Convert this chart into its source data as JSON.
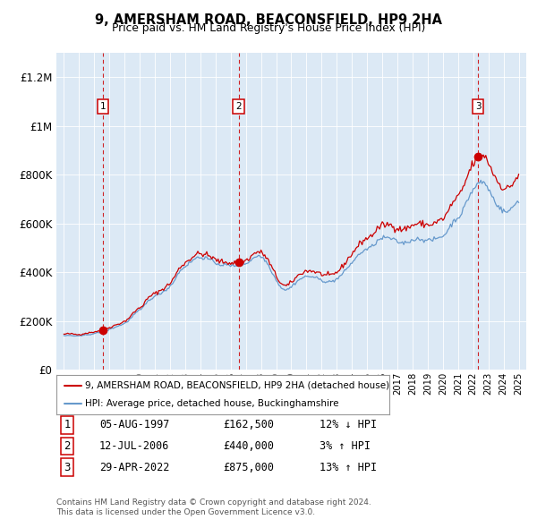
{
  "title": "9, AMERSHAM ROAD, BEACONSFIELD, HP9 2HA",
  "subtitle": "Price paid vs. HM Land Registry's House Price Index (HPI)",
  "sales": [
    {
      "date": 1997.58,
      "price": 162500,
      "label": "1",
      "date_str": "05-AUG-1997",
      "pct": "12%",
      "dir": "↓"
    },
    {
      "date": 2006.52,
      "price": 440000,
      "label": "2",
      "date_str": "12-JUL-2006",
      "pct": "3%",
      "dir": "↑"
    },
    {
      "date": 2022.32,
      "price": 875000,
      "label": "3",
      "date_str": "29-APR-2022",
      "pct": "13%",
      "dir": "↑"
    }
  ],
  "legend_line1": "9, AMERSHAM ROAD, BEACONSFIELD, HP9 2HA (detached house)",
  "legend_line2": "HPI: Average price, detached house, Buckinghamshire",
  "footer1": "Contains HM Land Registry data © Crown copyright and database right 2024.",
  "footer2": "This data is licensed under the Open Government Licence v3.0.",
  "red_color": "#cc0000",
  "blue_color": "#6699cc",
  "bg_color": "#dce9f5",
  "ylim": [
    0,
    1300000
  ],
  "xlim": [
    1994.5,
    2025.5
  ],
  "hpi_years": [
    1995.0,
    1995.08,
    1995.17,
    1995.25,
    1995.33,
    1995.42,
    1995.5,
    1995.58,
    1995.67,
    1995.75,
    1995.83,
    1995.92,
    1996.0,
    1996.08,
    1996.17,
    1996.25,
    1996.33,
    1996.42,
    1996.5,
    1996.58,
    1996.67,
    1996.75,
    1996.83,
    1996.92,
    1997.0,
    1997.08,
    1997.17,
    1997.25,
    1997.33,
    1997.42,
    1997.5,
    1997.58,
    1997.67,
    1997.75,
    1997.83,
    1997.92,
    1998.0,
    1998.08,
    1998.17,
    1998.25,
    1998.33,
    1998.42,
    1998.5,
    1998.58,
    1998.67,
    1998.75,
    1998.83,
    1998.92,
    1999.0,
    1999.08,
    1999.17,
    1999.25,
    1999.33,
    1999.42,
    1999.5,
    1999.58,
    1999.67,
    1999.75,
    1999.83,
    1999.92,
    2000.0,
    2000.08,
    2000.17,
    2000.25,
    2000.33,
    2000.42,
    2000.5,
    2000.58,
    2000.67,
    2000.75,
    2000.83,
    2000.92,
    2001.0,
    2001.08,
    2001.17,
    2001.25,
    2001.33,
    2001.42,
    2001.5,
    2001.58,
    2001.67,
    2001.75,
    2001.83,
    2001.92,
    2002.0,
    2002.08,
    2002.17,
    2002.25,
    2002.33,
    2002.42,
    2002.5,
    2002.58,
    2002.67,
    2002.75,
    2002.83,
    2002.92,
    2003.0,
    2003.08,
    2003.17,
    2003.25,
    2003.33,
    2003.42,
    2003.5,
    2003.58,
    2003.67,
    2003.75,
    2003.83,
    2003.92,
    2004.0,
    2004.08,
    2004.17,
    2004.25,
    2004.33,
    2004.42,
    2004.5,
    2004.58,
    2004.67,
    2004.75,
    2004.83,
    2004.92,
    2005.0,
    2005.08,
    2005.17,
    2005.25,
    2005.33,
    2005.42,
    2005.5,
    2005.58,
    2005.67,
    2005.75,
    2005.83,
    2005.92,
    2006.0,
    2006.08,
    2006.17,
    2006.25,
    2006.33,
    2006.42,
    2006.5,
    2006.58,
    2006.67,
    2006.75,
    2006.83,
    2006.92,
    2007.0,
    2007.08,
    2007.17,
    2007.25,
    2007.33,
    2007.42,
    2007.5,
    2007.58,
    2007.67,
    2007.75,
    2007.83,
    2007.92,
    2008.0,
    2008.08,
    2008.17,
    2008.25,
    2008.33,
    2008.42,
    2008.5,
    2008.58,
    2008.67,
    2008.75,
    2008.83,
    2008.92,
    2009.0,
    2009.08,
    2009.17,
    2009.25,
    2009.33,
    2009.42,
    2009.5,
    2009.58,
    2009.67,
    2009.75,
    2009.83,
    2009.92,
    2010.0,
    2010.08,
    2010.17,
    2010.25,
    2010.33,
    2010.42,
    2010.5,
    2010.58,
    2010.67,
    2010.75,
    2010.83,
    2010.92,
    2011.0,
    2011.08,
    2011.17,
    2011.25,
    2011.33,
    2011.42,
    2011.5,
    2011.58,
    2011.67,
    2011.75,
    2011.83,
    2011.92,
    2012.0,
    2012.08,
    2012.17,
    2012.25,
    2012.33,
    2012.42,
    2012.5,
    2012.58,
    2012.67,
    2012.75,
    2012.83,
    2012.92,
    2013.0,
    2013.08,
    2013.17,
    2013.25,
    2013.33,
    2013.42,
    2013.5,
    2013.58,
    2013.67,
    2013.75,
    2013.83,
    2013.92,
    2014.0,
    2014.08,
    2014.17,
    2014.25,
    2014.33,
    2014.42,
    2014.5,
    2014.58,
    2014.67,
    2014.75,
    2014.83,
    2014.92,
    2015.0,
    2015.08,
    2015.17,
    2015.25,
    2015.33,
    2015.42,
    2015.5,
    2015.58,
    2015.67,
    2015.75,
    2015.83,
    2015.92,
    2016.0,
    2016.08,
    2016.17,
    2016.25,
    2016.33,
    2016.42,
    2016.5,
    2016.58,
    2016.67,
    2016.75,
    2016.83,
    2016.92,
    2017.0,
    2017.08,
    2017.17,
    2017.25,
    2017.33,
    2017.42,
    2017.5,
    2017.58,
    2017.67,
    2017.75,
    2017.83,
    2017.92,
    2018.0,
    2018.08,
    2018.17,
    2018.25,
    2018.33,
    2018.42,
    2018.5,
    2018.58,
    2018.67,
    2018.75,
    2018.83,
    2018.92,
    2019.0,
    2019.08,
    2019.17,
    2019.25,
    2019.33,
    2019.42,
    2019.5,
    2019.58,
    2019.67,
    2019.75,
    2019.83,
    2019.92,
    2020.0,
    2020.08,
    2020.17,
    2020.25,
    2020.33,
    2020.42,
    2020.5,
    2020.58,
    2020.67,
    2020.75,
    2020.83,
    2020.92,
    2021.0,
    2021.08,
    2021.17,
    2021.25,
    2021.33,
    2021.42,
    2021.5,
    2021.58,
    2021.67,
    2021.75,
    2021.83,
    2021.92,
    2022.0,
    2022.08,
    2022.17,
    2022.25,
    2022.33,
    2022.42,
    2022.5,
    2022.58,
    2022.67,
    2022.75,
    2022.83,
    2022.92,
    2023.0,
    2023.08,
    2023.17,
    2023.25,
    2023.33,
    2023.42,
    2023.5,
    2023.58,
    2023.67,
    2023.75,
    2023.83,
    2023.92,
    2024.0,
    2024.08,
    2024.17,
    2024.25,
    2024.33,
    2024.42,
    2024.5,
    2024.58,
    2024.67,
    2024.75,
    2024.83,
    2024.92,
    2025.0
  ],
  "hpi_base": [
    138000,
    139000,
    139500,
    140000,
    140500,
    140000,
    139500,
    139000,
    138500,
    138000,
    137500,
    137000,
    137500,
    138000,
    139000,
    140500,
    141000,
    142000,
    143000,
    143500,
    144000,
    145000,
    146000,
    147000,
    148000,
    149000,
    150000,
    151000,
    152000,
    153000,
    154000,
    155000,
    157000,
    159000,
    161000,
    163000,
    165000,
    167000,
    169000,
    171000,
    173000,
    175000,
    177000,
    179000,
    181000,
    183000,
    185000,
    187000,
    190000,
    193000,
    197000,
    201000,
    206000,
    211000,
    217000,
    223000,
    228000,
    233000,
    237000,
    240000,
    243000,
    247000,
    252000,
    258000,
    265000,
    272000,
    278000,
    283000,
    288000,
    292000,
    295000,
    298000,
    300000,
    303000,
    306000,
    309000,
    312000,
    315000,
    318000,
    321000,
    325000,
    329000,
    333000,
    337000,
    342000,
    348000,
    355000,
    363000,
    372000,
    381000,
    390000,
    398000,
    405000,
    411000,
    416000,
    420000,
    424000,
    428000,
    432000,
    436000,
    440000,
    444000,
    449000,
    453000,
    456000,
    458000,
    460000,
    460000,
    460000,
    460000,
    460000,
    459000,
    458000,
    456000,
    454000,
    452000,
    450000,
    447000,
    444000,
    441000,
    438000,
    436000,
    434000,
    432000,
    431000,
    430000,
    430000,
    430000,
    430000,
    429000,
    428000,
    427000,
    426000,
    426000,
    426000,
    427000,
    427000,
    428000,
    429000,
    430000,
    431000,
    432000,
    433000,
    434000,
    436000,
    438000,
    441000,
    445000,
    449000,
    454000,
    458000,
    462000,
    465000,
    466000,
    466000,
    465000,
    463000,
    460000,
    456000,
    450000,
    444000,
    436000,
    427000,
    418000,
    408000,
    398000,
    388000,
    378000,
    368000,
    359000,
    351000,
    344000,
    338000,
    333000,
    330000,
    328000,
    328000,
    329000,
    332000,
    336000,
    340000,
    345000,
    350000,
    355000,
    360000,
    364000,
    368000,
    371000,
    374000,
    377000,
    379000,
    381000,
    382000,
    382000,
    382000,
    382000,
    381000,
    380000,
    379000,
    377000,
    375000,
    373000,
    371000,
    369000,
    367000,
    365000,
    363000,
    362000,
    361000,
    360000,
    360000,
    361000,
    362000,
    364000,
    366000,
    369000,
    372000,
    376000,
    380000,
    385000,
    390000,
    396000,
    402000,
    408000,
    415000,
    421000,
    427000,
    433000,
    439000,
    445000,
    451000,
    457000,
    463000,
    469000,
    474000,
    479000,
    483000,
    487000,
    490000,
    492000,
    494000,
    496000,
    499000,
    502000,
    506000,
    511000,
    516000,
    521000,
    526000,
    530000,
    534000,
    537000,
    539000,
    540000,
    541000,
    541000,
    541000,
    540000,
    539000,
    537000,
    535000,
    532000,
    530000,
    527000,
    525000,
    523000,
    521000,
    520000,
    520000,
    520000,
    521000,
    522000,
    524000,
    526000,
    528000,
    530000,
    532000,
    534000,
    535000,
    536000,
    536000,
    536000,
    536000,
    535000,
    534000,
    533000,
    532000,
    531000,
    530000,
    530000,
    530000,
    531000,
    532000,
    534000,
    536000,
    538000,
    540000,
    542000,
    544000,
    546000,
    548000,
    552000,
    558000,
    565000,
    573000,
    582000,
    590000,
    598000,
    605000,
    611000,
    616000,
    620000,
    624000,
    629000,
    636000,
    645000,
    655000,
    666000,
    678000,
    690000,
    702000,
    713000,
    723000,
    731000,
    738000,
    745000,
    752000,
    759000,
    764000,
    768000,
    770000,
    770000,
    768000,
    764000,
    758000,
    751000,
    742000,
    732000,
    722000,
    712000,
    702000,
    693000,
    685000,
    677000,
    670000,
    664000,
    659000,
    654000,
    650000,
    648000,
    647000,
    648000,
    650000,
    654000,
    659000,
    665000,
    671000,
    678000,
    684000,
    690000,
    695000
  ]
}
